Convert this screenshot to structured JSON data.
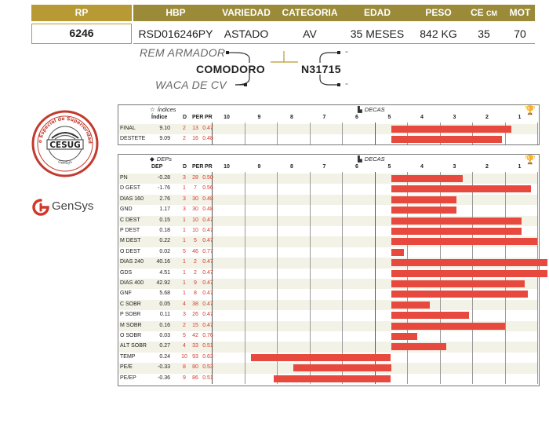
{
  "header": {
    "columns": [
      "RP",
      "HBP",
      "VARIEDAD",
      "CATEGORIA",
      "EDAD",
      "PESO",
      "CE",
      "MOT"
    ],
    "ce_unit": "CM",
    "values": [
      "6246",
      "RSD016246PY",
      "ASTADO",
      "AV",
      "35 MESES",
      "842 KG",
      "35",
      "70"
    ],
    "accent_color": "#b79a33"
  },
  "pedigree": {
    "sire_sire": "REM ARMADOR",
    "sire": "COMODORO",
    "sire_dam": "WACA DE CV",
    "dam": "N31715",
    "dam_sire": "-",
    "dam_dam": "-"
  },
  "logos": {
    "seal_ring_text": "Certificado Especial de Superioridad Genética",
    "seal_bottom_text": "GenSys",
    "seal_center": "CESUG",
    "gensys_word": "GenSys"
  },
  "deca_ticks": [
    "10",
    "9",
    "8",
    "7",
    "6",
    "5",
    "4",
    "3",
    "2",
    "1"
  ],
  "indices": {
    "title": "Índices",
    "decas_label": "DECAS",
    "columns": [
      "Índice",
      "D",
      "PER",
      "PR"
    ],
    "rows": [
      {
        "name": "FINAL",
        "value": "9.10",
        "d": "2",
        "per": "13",
        "pr": "0.47",
        "bar_start": 5.0,
        "bar_end": 1.3
      },
      {
        "name": "DESTETE",
        "value": "9.09",
        "d": "2",
        "per": "16",
        "pr": "0.48",
        "bar_start": 5.0,
        "bar_end": 1.6
      }
    ]
  },
  "deps": {
    "title": "DEPs",
    "decas_label": "DECAS",
    "columns": [
      "DEP",
      "D",
      "PER",
      "PR"
    ],
    "rows": [
      {
        "name": "PN",
        "value": "-0.28",
        "d": "3",
        "per": "28",
        "pr": "0.50",
        "bar_start": 5.0,
        "bar_end": 2.8
      },
      {
        "name": "D GEST",
        "value": "-1.76",
        "d": "1",
        "per": "7",
        "pr": "0.56",
        "bar_start": 5.0,
        "bar_end": 0.7
      },
      {
        "name": "DIAS 160",
        "value": "2.76",
        "d": "3",
        "per": "30",
        "pr": "0.48",
        "bar_start": 5.0,
        "bar_end": 3.0
      },
      {
        "name": "GND",
        "value": "1.17",
        "d": "3",
        "per": "30",
        "pr": "0.48",
        "bar_start": 5.0,
        "bar_end": 3.0
      },
      {
        "name": "C DEST",
        "value": "0.15",
        "d": "1",
        "per": "10",
        "pr": "0.47",
        "bar_start": 5.0,
        "bar_end": 1.0
      },
      {
        "name": "P DEST",
        "value": "0.18",
        "d": "1",
        "per": "10",
        "pr": "0.47",
        "bar_start": 5.0,
        "bar_end": 1.0
      },
      {
        "name": "M DEST",
        "value": "0.22",
        "d": "1",
        "per": "5",
        "pr": "0.47",
        "bar_start": 5.0,
        "bar_end": 0.5
      },
      {
        "name": "O DEST",
        "value": "0.02",
        "d": "5",
        "per": "46",
        "pr": "0.77",
        "bar_start": 5.0,
        "bar_end": 4.6
      },
      {
        "name": "DIAS 240",
        "value": "40.16",
        "d": "1",
        "per": "2",
        "pr": "0.47",
        "bar_start": 5.0,
        "bar_end": 0.2
      },
      {
        "name": "GDS",
        "value": "4.51",
        "d": "1",
        "per": "2",
        "pr": "0.47",
        "bar_start": 5.0,
        "bar_end": 0.2
      },
      {
        "name": "DIAS 400",
        "value": "42.92",
        "d": "1",
        "per": "9",
        "pr": "0.47",
        "bar_start": 5.0,
        "bar_end": 0.9
      },
      {
        "name": "GNF",
        "value": "5.68",
        "d": "1",
        "per": "8",
        "pr": "0.47",
        "bar_start": 5.0,
        "bar_end": 0.8
      },
      {
        "name": "C SOBR",
        "value": "0.05",
        "d": "4",
        "per": "38",
        "pr": "0.47",
        "bar_start": 5.0,
        "bar_end": 3.8
      },
      {
        "name": "P SOBR",
        "value": "0.11",
        "d": "3",
        "per": "26",
        "pr": "0.47",
        "bar_start": 5.0,
        "bar_end": 2.6
      },
      {
        "name": "M SOBR",
        "value": "0.16",
        "d": "2",
        "per": "15",
        "pr": "0.47",
        "bar_start": 5.0,
        "bar_end": 1.5
      },
      {
        "name": "O SOBR",
        "value": "0.03",
        "d": "5",
        "per": "42",
        "pr": "0.76",
        "bar_start": 5.0,
        "bar_end": 4.2
      },
      {
        "name": "ALT SOBR",
        "value": "0.27",
        "d": "4",
        "per": "33",
        "pr": "0.51",
        "bar_start": 5.0,
        "bar_end": 3.3
      },
      {
        "name": "TEMP",
        "value": "0.24",
        "d": "10",
        "per": "93",
        "pr": "0.63",
        "bar_start": 9.3,
        "bar_end": 5.0
      },
      {
        "name": "PE/E",
        "value": "-0.33",
        "d": "8",
        "per": "80",
        "pr": "0.53",
        "bar_start": 8.0,
        "bar_end": 5.0
      },
      {
        "name": "PE/EP",
        "value": "-0.36",
        "d": "9",
        "per": "86",
        "pr": "0.51",
        "bar_start": 8.6,
        "bar_end": 5.0
      }
    ]
  },
  "colors": {
    "bar": "#e8493e",
    "red_text": "#d63a2b",
    "header_gold": "#b79a33",
    "header_olive": "#9b8b39",
    "row_shade": "#f2f2e6"
  }
}
